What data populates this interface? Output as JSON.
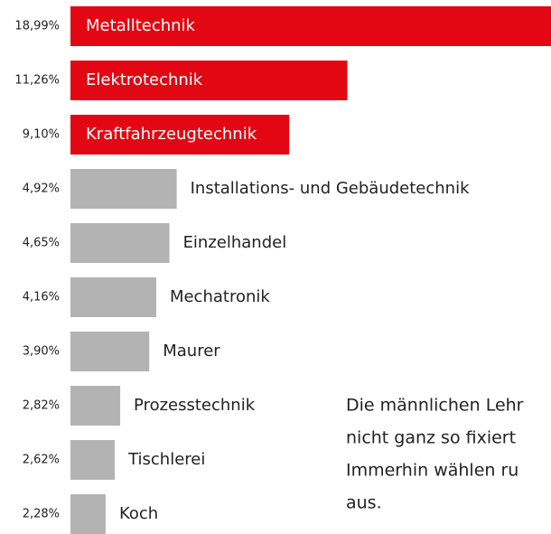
{
  "chart_data": {
    "type": "bar",
    "categories": [
      "Metalltechnik",
      "Elektrotechnik",
      "Kraftfahrzeugtechnik",
      "Installations- und Gebäudetechnik",
      "Einzelhandel",
      "Mechatronik",
      "Maurer",
      "Prozesstechnik",
      "Tischlerei",
      "Koch"
    ],
    "values": [
      18.99,
      11.26,
      9.1,
      4.92,
      4.65,
      4.16,
      3.9,
      2.82,
      2.62,
      2.28
    ],
    "value_labels": [
      "18,99%",
      "11,26%",
      "9,10%",
      "4,92%",
      "4,65%",
      "4,16%",
      "3,90%",
      "2,82%",
      "2,62%",
      "2,28%"
    ],
    "colors": [
      "#e30613",
      "#e30613",
      "#e30613",
      "#b3b3b3",
      "#b3b3b3",
      "#b3b3b3",
      "#b3b3b3",
      "#b3b3b3",
      "#b3b3b3",
      "#b3b3b3"
    ],
    "annotations": [
      "Die männlichen Lehr",
      "nicht ganz so fixiert",
      "Immerhin wählen ru",
      "aus."
    ]
  }
}
